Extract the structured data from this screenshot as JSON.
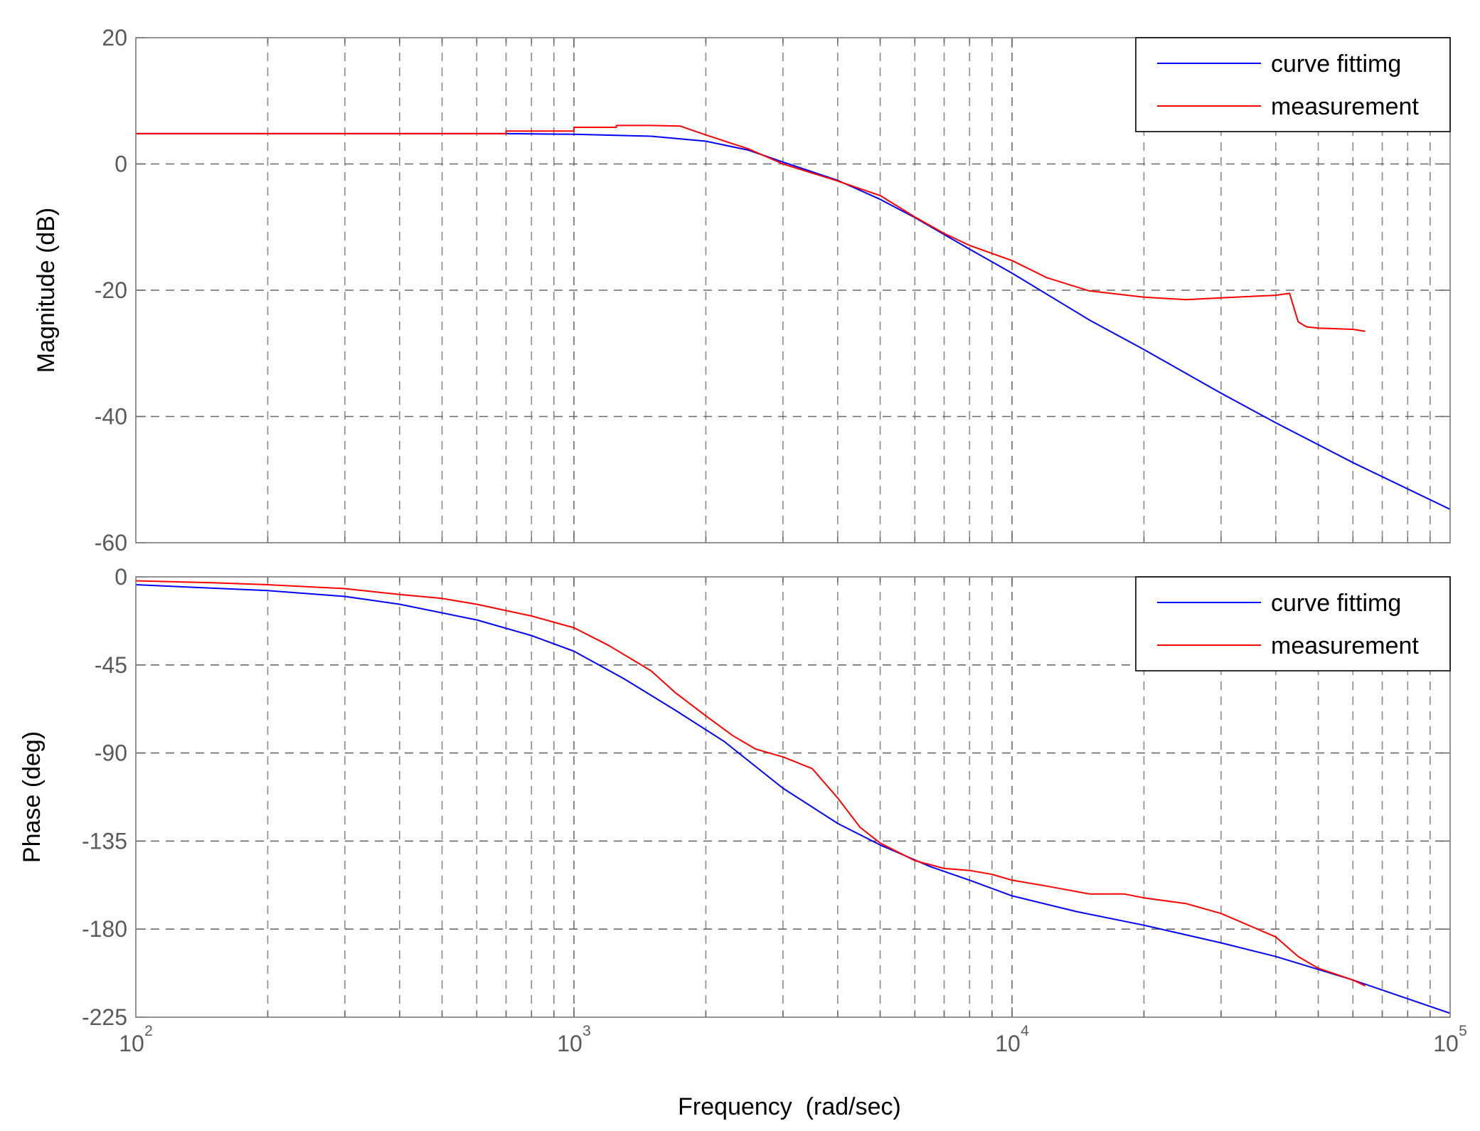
{
  "chart_data": [
    {
      "type": "line",
      "panel": "magnitude",
      "ylabel": "Magnitude (dB)",
      "xscale": "log",
      "xlim": [
        100,
        100000
      ],
      "ylim": [
        -60,
        20
      ],
      "yticks": [
        {
          "value": 20,
          "label": "20"
        },
        {
          "value": 0,
          "label": "0"
        },
        {
          "value": -20,
          "label": "-20"
        },
        {
          "value": -40,
          "label": "-40"
        },
        {
          "value": -60,
          "label": "-60"
        }
      ],
      "grid": true,
      "legend_position": "top-right",
      "series": [
        {
          "name": "curve fittimg",
          "color": "#0000ff",
          "x": [
            100,
            300,
            700,
            1000,
            1500,
            2000,
            2500,
            3000,
            4000,
            5000,
            6000,
            8000,
            10000,
            15000,
            20000,
            30000,
            40000,
            60000,
            100000
          ],
          "y": [
            4.8,
            4.8,
            4.8,
            4.7,
            4.4,
            3.6,
            2.2,
            0.3,
            -2.6,
            -5.6,
            -8.5,
            -13.5,
            -17.3,
            -24.7,
            -29.4,
            -36.3,
            -41.0,
            -47.3,
            -54.7
          ]
        },
        {
          "name": "measurement",
          "color": "#ff0000",
          "x": [
            100,
            700,
            700,
            1000,
            1000,
            1250,
            1250,
            1500,
            1750,
            2000,
            2500,
            3000,
            4000,
            5000,
            6000,
            7000,
            8000,
            10000,
            12000,
            15000,
            20000,
            25000,
            30000,
            40000,
            43000,
            45000,
            47000,
            50000,
            60000,
            64000
          ],
          "y": [
            4.8,
            4.8,
            5.2,
            5.2,
            5.8,
            5.8,
            6.1,
            6.1,
            6.0,
            4.6,
            2.4,
            0.0,
            -2.7,
            -5.0,
            -8.4,
            -11.0,
            -12.9,
            -15.3,
            -18.0,
            -20.1,
            -21.1,
            -21.5,
            -21.2,
            -20.8,
            -20.5,
            -25.0,
            -25.8,
            -26.0,
            -26.2,
            -26.5
          ]
        }
      ]
    },
    {
      "type": "line",
      "panel": "phase",
      "ylabel": "Phase (deg)",
      "xlabel": "Frequency  (rad/sec)",
      "xscale": "log",
      "xlim": [
        100,
        100000
      ],
      "ylim": [
        -225,
        0
      ],
      "yticks": [
        {
          "value": 0,
          "label": "0"
        },
        {
          "value": -45,
          "label": "-45"
        },
        {
          "value": -90,
          "label": "-90"
        },
        {
          "value": -135,
          "label": "-135"
        },
        {
          "value": -180,
          "label": "-180"
        },
        {
          "value": -225,
          "label": "-225"
        }
      ],
      "xticks": [
        {
          "value": 100,
          "base": "10",
          "exp": "2"
        },
        {
          "value": 1000,
          "base": "10",
          "exp": "3"
        },
        {
          "value": 10000,
          "base": "10",
          "exp": "4"
        },
        {
          "value": 100000,
          "base": "10",
          "exp": "5"
        }
      ],
      "grid": true,
      "legend_position": "top-right",
      "series": [
        {
          "name": "curve fittimg",
          "color": "#0000ff",
          "x": [
            100,
            200,
            300,
            400,
            600,
            800,
            1000,
            1300,
            1700,
            2200,
            3000,
            4000,
            5000,
            6500,
            8000,
            10000,
            14000,
            20000,
            30000,
            40000,
            60000,
            100000
          ],
          "y": [
            -4,
            -7,
            -10,
            -14,
            -22,
            -30,
            -38,
            -52,
            -68,
            -84,
            -108,
            -126,
            -137,
            -148,
            -155,
            -163,
            -171,
            -178,
            -187,
            -194,
            -206,
            -223
          ]
        },
        {
          "name": "measurement",
          "color": "#ff0000",
          "x": [
            100,
            150,
            200,
            300,
            400,
            500,
            600,
            800,
            1000,
            1200,
            1500,
            1700,
            2000,
            2300,
            2600,
            3000,
            3500,
            4000,
            4500,
            5000,
            6000,
            7000,
            8000,
            9000,
            10000,
            12000,
            15000,
            18000,
            20000,
            25000,
            30000,
            40000,
            45000,
            50000,
            60000,
            64000
          ],
          "y": [
            -2,
            -3,
            -4,
            -6,
            -9,
            -11,
            -14,
            -20,
            -26,
            -35,
            -48,
            -59,
            -71,
            -81,
            -88,
            -92,
            -98,
            -113,
            -128,
            -136,
            -145,
            -149,
            -150,
            -152,
            -155,
            -158,
            -162,
            -162,
            -164,
            -167,
            -172,
            -184,
            -194,
            -200,
            -206,
            -209
          ]
        }
      ]
    }
  ]
}
